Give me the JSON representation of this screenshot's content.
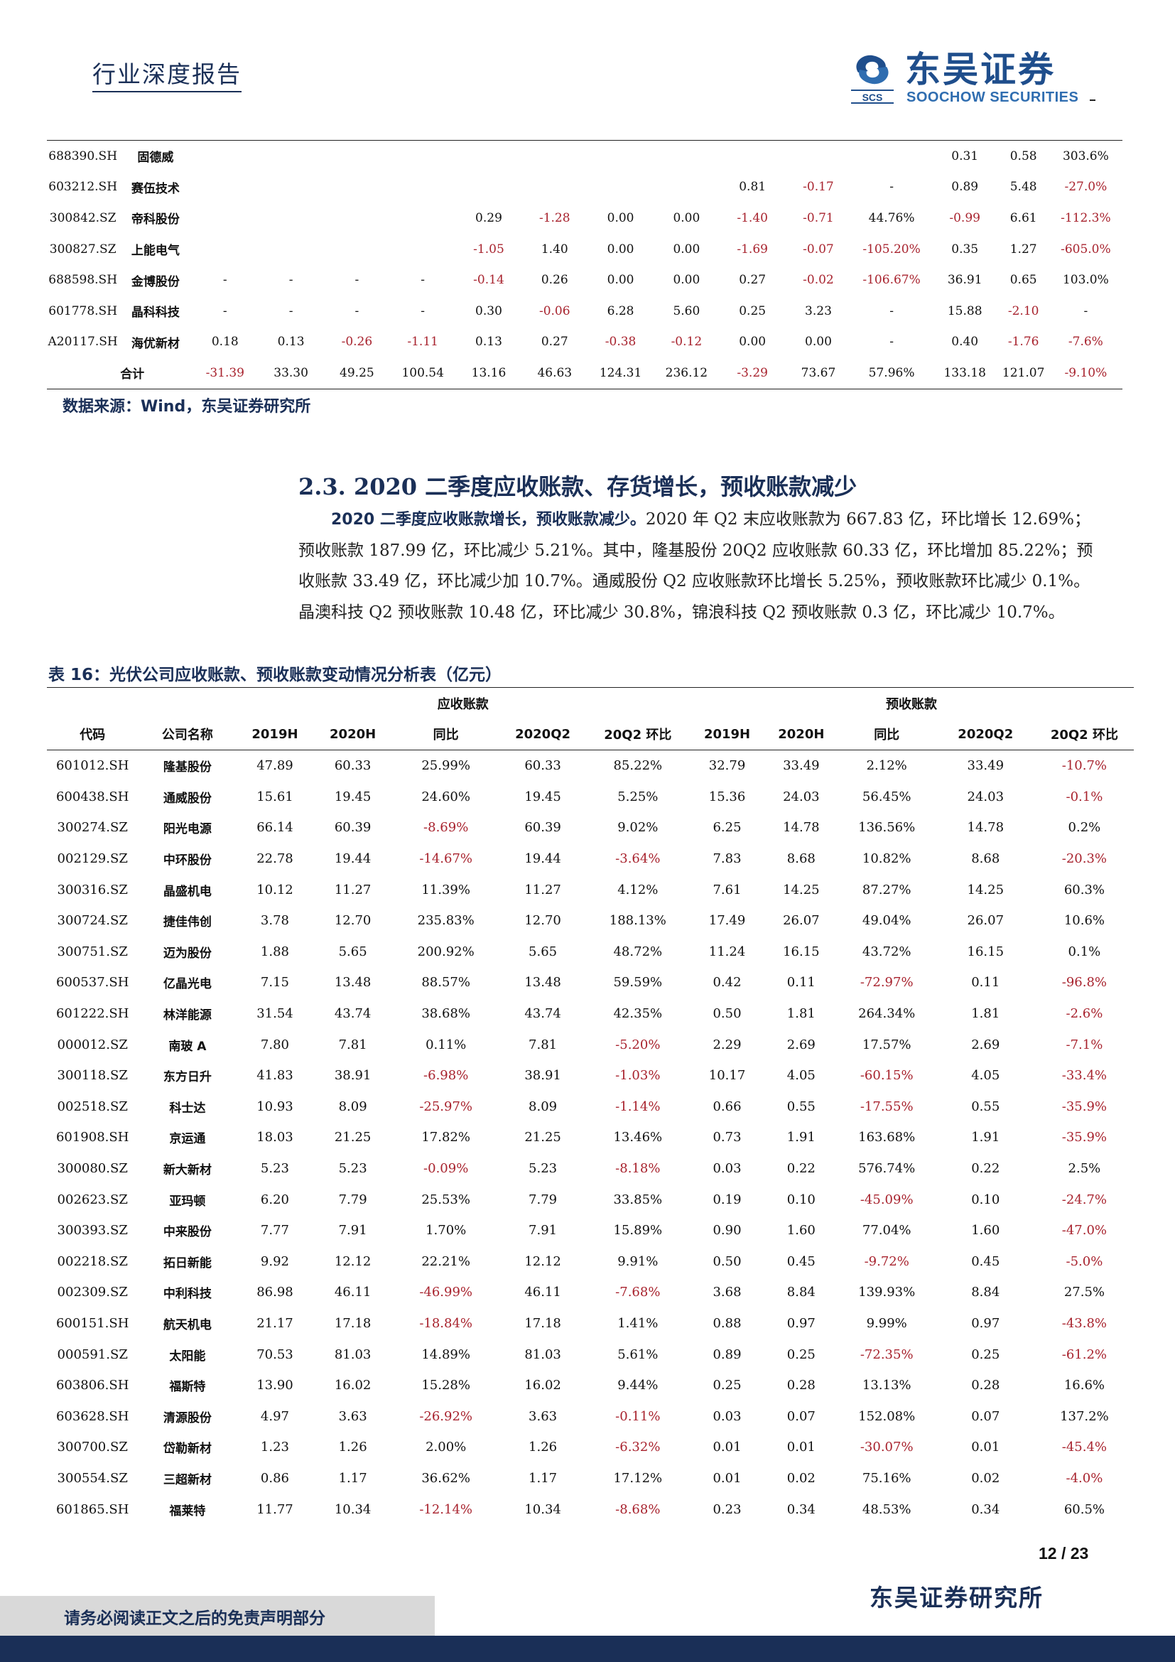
{
  "header": {
    "title": "行业深度报告",
    "logo_cn": "东吴证券",
    "logo_en": "SOOCHOW SECURITIES",
    "logo_mark_text": "SCS"
  },
  "table_top": {
    "rows": [
      [
        "688390.SH",
        "固德威",
        "",
        "",
        "",
        "",
        "",
        "",
        "",
        "",
        "",
        "",
        "",
        "0.31",
        "0.58",
        "303.6%"
      ],
      [
        "603212.SH",
        "赛伍技术",
        "",
        "",
        "",
        "",
        "",
        "",
        "",
        "",
        "0.81",
        "-0.17",
        "-",
        "0.89",
        "5.48",
        "-27.0%"
      ],
      [
        "300842.SZ",
        "帝科股份",
        "",
        "",
        "",
        "",
        "0.29",
        "-1.28",
        "0.00",
        "0.00",
        "-1.40",
        "-0.71",
        "44.76%",
        "-0.99",
        "6.61",
        "-112.3%"
      ],
      [
        "300827.SZ",
        "上能电气",
        "",
        "",
        "",
        "",
        "-1.05",
        "1.40",
        "0.00",
        "0.00",
        "-1.69",
        "-0.07",
        "-105.20%",
        "0.35",
        "1.27",
        "-605.0%"
      ],
      [
        "688598.SH",
        "金博股份",
        "-",
        "-",
        "-",
        "-",
        "-0.14",
        "0.26",
        "0.00",
        "0.00",
        "0.27",
        "-0.02",
        "-106.67%",
        "36.91",
        "0.65",
        "103.0%"
      ],
      [
        "601778.SH",
        "晶科科技",
        "-",
        "-",
        "-",
        "-",
        "0.30",
        "-0.06",
        "6.28",
        "5.60",
        "0.25",
        "3.23",
        "-",
        "15.88",
        "-2.10",
        "-"
      ],
      [
        "A20117.SH",
        "海优新材",
        "0.18",
        "0.13",
        "-0.26",
        "-1.11",
        "0.13",
        "0.27",
        "-0.38",
        "-0.12",
        "0.00",
        "0.00",
        "-",
        "0.40",
        "-1.76",
        "-7.6%"
      ]
    ],
    "total_label": "合计",
    "total": [
      "-31.39",
      "33.30",
      "49.25",
      "100.54",
      "13.16",
      "46.63",
      "124.31",
      "236.12",
      "-3.29",
      "73.67",
      "57.96%",
      "133.18",
      "121.07",
      "-9.10%"
    ]
  },
  "source": "数据来源：Wind，东吴证券研究所",
  "section_title": "2.3. 2020 二季度应收账款、存货增长，预收账款减少",
  "paragraph": {
    "lead": "2020 二季度应收账款增长，预收账款减少。",
    "body": "2020 年 Q2 末应收账款为 667.83 亿，环比增长 12.69%；预收账款 187.99 亿，环比减少 5.21%。其中，隆基股份 20Q2 应收账款 60.33 亿，环比增加 85.22%；预收账款 33.49 亿，环比减少加 10.7%。通威股份 Q2 应收账款环比增长 5.25%，预收账款环比减少 0.1%。晶澳科技 Q2 预收账款 10.48 亿，环比减少 30.8%，锦浪科技 Q2 预收账款 0.3 亿，环比减少 10.7%。"
  },
  "table16": {
    "caption": "表 16：光伏公司应收账款、预收账款变动情况分析表（亿元）",
    "group_receivable": "应收账款",
    "group_advance": "预收账款",
    "columns": [
      "代码",
      "公司名称",
      "2019H",
      "2020H",
      "同比",
      "2020Q2",
      "20Q2 环比",
      "2019H",
      "2020H",
      "同比",
      "2020Q2",
      "20Q2 环比"
    ],
    "rows": [
      [
        "601012.SH",
        "隆基股份",
        "47.89",
        "60.33",
        "25.99%",
        "60.33",
        "85.22%",
        "32.79",
        "33.49",
        "2.12%",
        "33.49",
        "-10.7%"
      ],
      [
        "600438.SH",
        "通威股份",
        "15.61",
        "19.45",
        "24.60%",
        "19.45",
        "5.25%",
        "15.36",
        "24.03",
        "56.45%",
        "24.03",
        "-0.1%"
      ],
      [
        "300274.SZ",
        "阳光电源",
        "66.14",
        "60.39",
        "-8.69%",
        "60.39",
        "9.02%",
        "6.25",
        "14.78",
        "136.56%",
        "14.78",
        "0.2%"
      ],
      [
        "002129.SZ",
        "中环股份",
        "22.78",
        "19.44",
        "-14.67%",
        "19.44",
        "-3.64%",
        "7.83",
        "8.68",
        "10.82%",
        "8.68",
        "-20.3%"
      ],
      [
        "300316.SZ",
        "晶盛机电",
        "10.12",
        "11.27",
        "11.39%",
        "11.27",
        "4.12%",
        "7.61",
        "14.25",
        "87.27%",
        "14.25",
        "60.3%"
      ],
      [
        "300724.SZ",
        "捷佳伟创",
        "3.78",
        "12.70",
        "235.83%",
        "12.70",
        "188.13%",
        "17.49",
        "26.07",
        "49.04%",
        "26.07",
        "10.6%"
      ],
      [
        "300751.SZ",
        "迈为股份",
        "1.88",
        "5.65",
        "200.92%",
        "5.65",
        "48.72%",
        "11.24",
        "16.15",
        "43.72%",
        "16.15",
        "0.1%"
      ],
      [
        "600537.SH",
        "亿晶光电",
        "7.15",
        "13.48",
        "88.57%",
        "13.48",
        "59.59%",
        "0.42",
        "0.11",
        "-72.97%",
        "0.11",
        "-96.8%"
      ],
      [
        "601222.SH",
        "林洋能源",
        "31.54",
        "43.74",
        "38.68%",
        "43.74",
        "42.35%",
        "0.50",
        "1.81",
        "264.34%",
        "1.81",
        "-2.6%"
      ],
      [
        "000012.SZ",
        "南玻 A",
        "7.80",
        "7.81",
        "0.11%",
        "7.81",
        "-5.20%",
        "2.29",
        "2.69",
        "17.57%",
        "2.69",
        "-7.1%"
      ],
      [
        "300118.SZ",
        "东方日升",
        "41.83",
        "38.91",
        "-6.98%",
        "38.91",
        "-1.03%",
        "10.17",
        "4.05",
        "-60.15%",
        "4.05",
        "-33.4%"
      ],
      [
        "002518.SZ",
        "科士达",
        "10.93",
        "8.09",
        "-25.97%",
        "8.09",
        "-1.14%",
        "0.66",
        "0.55",
        "-17.55%",
        "0.55",
        "-35.9%"
      ],
      [
        "601908.SH",
        "京运通",
        "18.03",
        "21.25",
        "17.82%",
        "21.25",
        "13.46%",
        "0.73",
        "1.91",
        "163.68%",
        "1.91",
        "-35.9%"
      ],
      [
        "300080.SZ",
        "新大新材",
        "5.23",
        "5.23",
        "-0.09%",
        "5.23",
        "-8.18%",
        "0.03",
        "0.22",
        "576.74%",
        "0.22",
        "2.5%"
      ],
      [
        "002623.SZ",
        "亚玛顿",
        "6.20",
        "7.79",
        "25.53%",
        "7.79",
        "33.85%",
        "0.19",
        "0.10",
        "-45.09%",
        "0.10",
        "-24.7%"
      ],
      [
        "300393.SZ",
        "中来股份",
        "7.77",
        "7.91",
        "1.70%",
        "7.91",
        "15.89%",
        "0.90",
        "1.60",
        "77.04%",
        "1.60",
        "-47.0%"
      ],
      [
        "002218.SZ",
        "拓日新能",
        "9.92",
        "12.12",
        "22.21%",
        "12.12",
        "9.91%",
        "0.50",
        "0.45",
        "-9.72%",
        "0.45",
        "-5.0%"
      ],
      [
        "002309.SZ",
        "中利科技",
        "86.98",
        "46.11",
        "-46.99%",
        "46.11",
        "-7.68%",
        "3.68",
        "8.84",
        "139.93%",
        "8.84",
        "27.5%"
      ],
      [
        "600151.SH",
        "航天机电",
        "21.17",
        "17.18",
        "-18.84%",
        "17.18",
        "1.41%",
        "0.88",
        "0.97",
        "9.99%",
        "0.97",
        "-43.8%"
      ],
      [
        "000591.SZ",
        "太阳能",
        "70.53",
        "81.03",
        "14.89%",
        "81.03",
        "5.61%",
        "0.89",
        "0.25",
        "-72.35%",
        "0.25",
        "-61.2%"
      ],
      [
        "603806.SH",
        "福斯特",
        "13.90",
        "16.02",
        "15.28%",
        "16.02",
        "9.44%",
        "0.25",
        "0.28",
        "13.13%",
        "0.28",
        "16.6%"
      ],
      [
        "603628.SH",
        "清源股份",
        "4.97",
        "3.63",
        "-26.92%",
        "3.63",
        "-0.11%",
        "0.03",
        "0.07",
        "152.08%",
        "0.07",
        "137.2%"
      ],
      [
        "300700.SZ",
        "岱勒新材",
        "1.23",
        "1.26",
        "2.00%",
        "1.26",
        "-6.32%",
        "0.01",
        "0.01",
        "-30.07%",
        "0.01",
        "-45.4%"
      ],
      [
        "300554.SZ",
        "三超新材",
        "0.86",
        "1.17",
        "36.62%",
        "1.17",
        "17.12%",
        "0.01",
        "0.02",
        "75.16%",
        "0.02",
        "-4.0%"
      ],
      [
        "601865.SH",
        "福莱特",
        "11.77",
        "10.34",
        "-12.14%",
        "10.34",
        "-8.68%",
        "0.23",
        "0.34",
        "48.53%",
        "0.34",
        "60.5%"
      ]
    ]
  },
  "footer": {
    "page": "12 / 23",
    "institute": "东吴证券研究所",
    "disclaimer": "请务必阅读正文之后的免责声明部分"
  },
  "colors": {
    "navy": "#1a2f57",
    "negative": "#a8232e",
    "logo_blue": "#1f4e8c"
  }
}
